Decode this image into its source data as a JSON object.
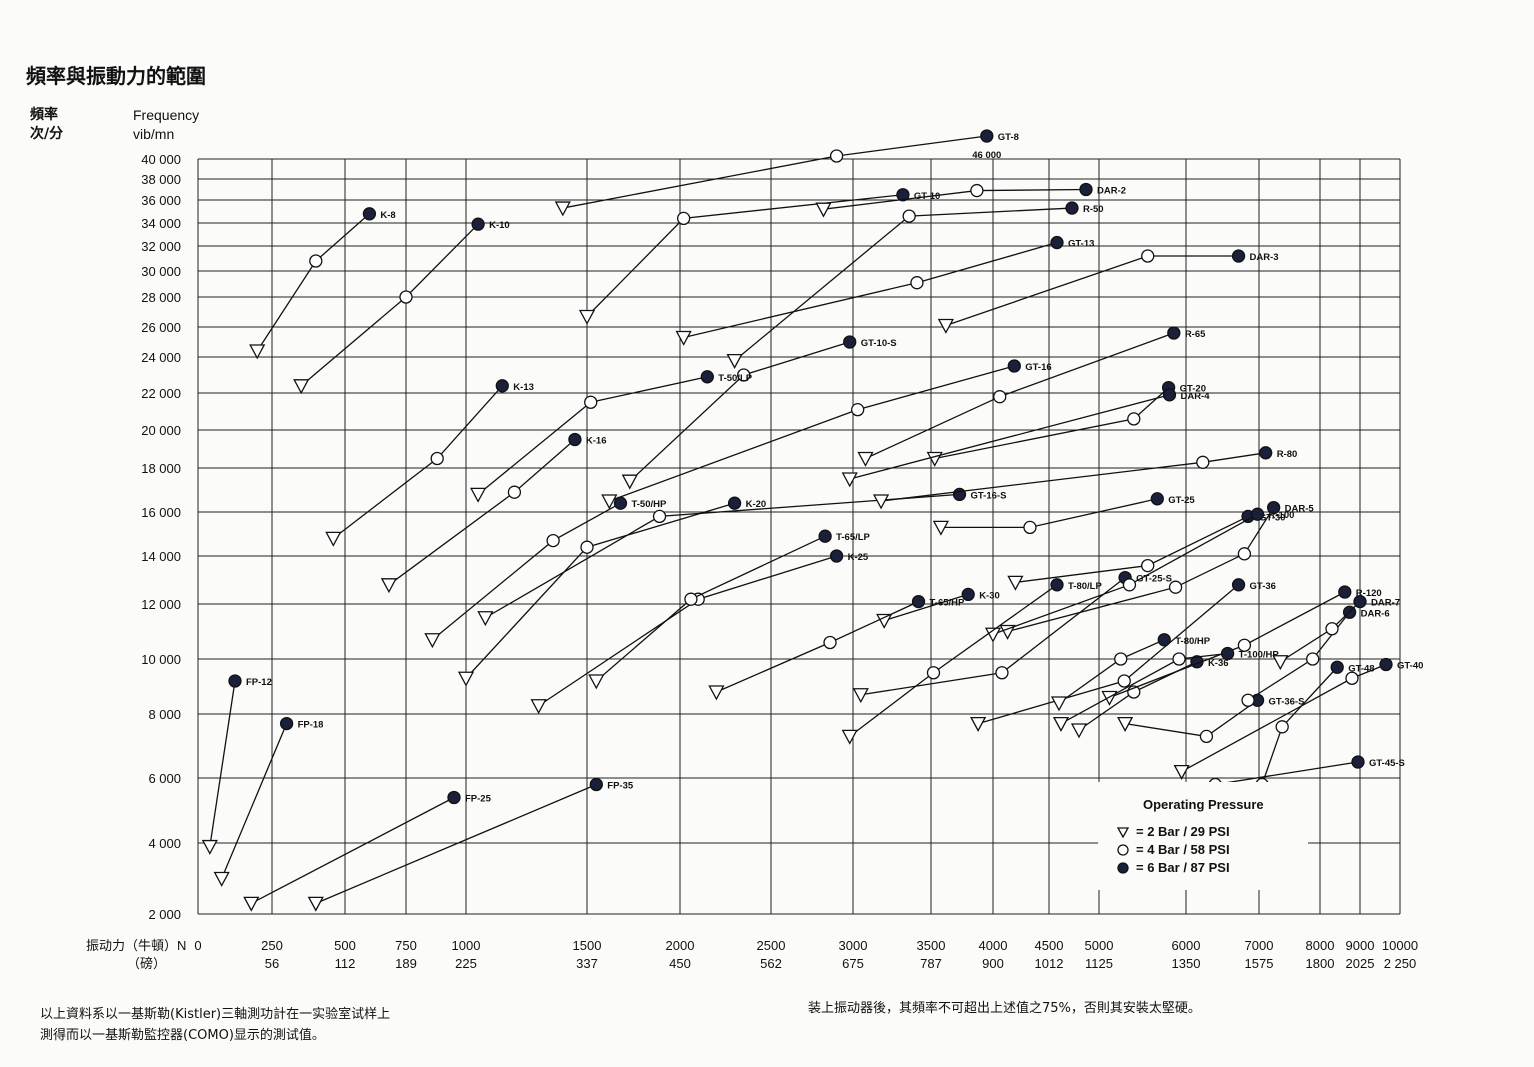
{
  "page": {
    "title": "頻率與振動力的範圍",
    "ylabel_cn_1": "頻率",
    "ylabel_cn_2": "次/分",
    "ylabel_en_1": "Frequency",
    "ylabel_en_2": "vib/mn",
    "footnote_left_1": "以上資料系以一基斯勒(Kistler)三軸測功計在一实验室试样上",
    "footnote_left_2": "測得而以一基斯勒監控器(COMO)显示的測试值。",
    "footnote_right": "装上振动器後，其頻率不可超出上述值之75%，否則其安裝太堅硬。"
  },
  "legend": {
    "title": "Operating Pressure",
    "items": [
      {
        "marker": "triangle",
        "label": "= 2 Bar / 29 PSI"
      },
      {
        "marker": "open-circle",
        "label": "= 4 Bar / 58 PSI"
      },
      {
        "marker": "filled-circle",
        "label": "= 6 Bar / 87 PSI"
      }
    ]
  },
  "chart_data": {
    "type": "line",
    "xlabel_cn": "振动力（牛頓）N",
    "xlabel_cn_2": "（磅）",
    "x_ticks": [
      {
        "n": 0,
        "lb": ""
      },
      {
        "n": 250,
        "lb": "56"
      },
      {
        "n": 500,
        "lb": "112"
      },
      {
        "n": 750,
        "lb": "189"
      },
      {
        "n": 1000,
        "lb": "225"
      },
      {
        "n": 1500,
        "lb": "337"
      },
      {
        "n": 2000,
        "lb": "450"
      },
      {
        "n": 2500,
        "lb": "562"
      },
      {
        "n": 3000,
        "lb": "675"
      },
      {
        "n": 3500,
        "lb": "787"
      },
      {
        "n": 4000,
        "lb": "900"
      },
      {
        "n": 4500,
        "lb": "1012"
      },
      {
        "n": 5000,
        "lb": "1125"
      },
      {
        "n": 6000,
        "lb": "1350"
      },
      {
        "n": 7000,
        "lb": "1575"
      },
      {
        "n": 8000,
        "lb": "1800"
      },
      {
        "n": 9000,
        "lb": "2025"
      },
      {
        "n": 10000,
        "lb": "2 250"
      }
    ],
    "y_ticks": [
      "2 000",
      "4 000",
      "6 000",
      "8 000",
      "10 000",
      "12 000",
      "14 000",
      "16 000",
      "18 000",
      "20 000",
      "22 000",
      "24 000",
      "26 000",
      "28 000",
      "30 000",
      "32 000",
      "34 000",
      "36 000",
      "38 000",
      "40 000"
    ],
    "y_extra_label": "46 000",
    "xlim": [
      0,
      10000
    ],
    "ylim": [
      2000,
      40000
    ],
    "grid": true,
    "legend_position": "bottom-right",
    "series": [
      {
        "name": "FP-12",
        "points": [
          [
            40,
            3900,
            "t"
          ],
          [
            125,
            9200,
            "f"
          ]
        ]
      },
      {
        "name": "FP-18",
        "points": [
          [
            80,
            3000,
            "t"
          ],
          [
            300,
            7700,
            "f"
          ]
        ]
      },
      {
        "name": "FP-25",
        "points": [
          [
            180,
            2300,
            "t"
          ],
          [
            950,
            5400,
            "f"
          ]
        ]
      },
      {
        "name": "FP-35",
        "points": [
          [
            400,
            2300,
            "t"
          ],
          [
            1550,
            5800,
            "f"
          ]
        ]
      },
      {
        "name": "K-8",
        "points": [
          [
            200,
            24400,
            "t"
          ],
          [
            400,
            30800,
            "o"
          ],
          [
            600,
            34800,
            "f"
          ]
        ]
      },
      {
        "name": "K-10",
        "points": [
          [
            350,
            22400,
            "t"
          ],
          [
            750,
            28000,
            "o"
          ],
          [
            1050,
            33900,
            "f"
          ]
        ]
      },
      {
        "name": "K-13",
        "points": [
          [
            460,
            14800,
            "t"
          ],
          [
            880,
            18500,
            "o"
          ],
          [
            1150,
            22400,
            "f"
          ]
        ]
      },
      {
        "name": "K-16",
        "points": [
          [
            680,
            12800,
            "t"
          ],
          [
            1200,
            16900,
            "o"
          ],
          [
            1450,
            19500,
            "f"
          ]
        ]
      },
      {
        "name": "K-20",
        "points": [
          [
            1000,
            9300,
            "t"
          ],
          [
            1500,
            14400,
            "o"
          ],
          [
            2300,
            16400,
            "f"
          ]
        ]
      },
      {
        "name": "K-25",
        "points": [
          [
            1300,
            8300,
            "t"
          ],
          [
            2100,
            12200,
            "o"
          ],
          [
            2900,
            14000,
            "f"
          ]
        ]
      },
      {
        "name": "K-30",
        "points": [
          [
            3200,
            11400,
            "t"
          ],
          [
            3800,
            12400,
            "f"
          ]
        ]
      },
      {
        "name": "K-36",
        "points": [
          [
            4800,
            7500,
            "t"
          ],
          [
            5400,
            8800,
            "o"
          ],
          [
            6150,
            9900,
            "f"
          ]
        ]
      },
      {
        "name": "GT-8",
        "points": [
          [
            1400,
            35300,
            "t"
          ],
          [
            2900,
            40300,
            "o"
          ],
          [
            3950,
            42300,
            "f"
          ]
        ]
      },
      {
        "name": "GT-10",
        "points": [
          [
            1500,
            26700,
            "t"
          ],
          [
            2020,
            34400,
            "o"
          ],
          [
            3320,
            36500,
            "f"
          ]
        ]
      },
      {
        "name": "GT-10-S",
        "points": [
          [
            1730,
            17400,
            "t"
          ],
          [
            2350,
            23000,
            "o"
          ],
          [
            2980,
            25000,
            "f"
          ]
        ]
      },
      {
        "name": "GT-13",
        "points": [
          [
            2020,
            25300,
            "t"
          ],
          [
            3410,
            29100,
            "o"
          ],
          [
            4580,
            32300,
            "f"
          ]
        ]
      },
      {
        "name": "GT-16",
        "points": [
          [
            1620,
            16500,
            "t"
          ],
          [
            3030,
            21100,
            "o"
          ],
          [
            4190,
            23500,
            "f"
          ]
        ]
      },
      {
        "name": "GT-16-S",
        "points": [
          [
            1080,
            11500,
            "t"
          ],
          [
            1890,
            15800,
            "o"
          ],
          [
            3730,
            16800,
            "f"
          ]
        ]
      },
      {
        "name": "GT-20",
        "points": [
          [
            3530,
            18500,
            "t"
          ],
          [
            5400,
            20600,
            "o"
          ],
          [
            5800,
            22300,
            "f"
          ]
        ]
      },
      {
        "name": "GT-25",
        "points": [
          [
            3580,
            15300,
            "t"
          ],
          [
            4330,
            15300,
            "o"
          ],
          [
            5670,
            16600,
            "f"
          ]
        ]
      },
      {
        "name": "GT-25-S",
        "points": [
          [
            3050,
            8700,
            "t"
          ],
          [
            4080,
            9500,
            "o"
          ],
          [
            5300,
            13100,
            "f"
          ]
        ]
      },
      {
        "name": "GT-30",
        "points": [
          [
            4200,
            12900,
            "t"
          ],
          [
            5560,
            13600,
            "o"
          ],
          [
            6850,
            15800,
            "f"
          ]
        ]
      },
      {
        "name": "GT-36",
        "points": [
          [
            3880,
            7700,
            "t"
          ],
          [
            5290,
            9200,
            "o"
          ],
          [
            6720,
            12800,
            "f"
          ]
        ]
      },
      {
        "name": "GT-36-S",
        "points": [
          [
            5300,
            7700,
            "t"
          ],
          [
            6280,
            7300,
            "o"
          ],
          [
            6980,
            8500,
            "f"
          ]
        ]
      },
      {
        "name": "GT-40",
        "points": [
          [
            5950,
            6200,
            "t"
          ],
          [
            8800,
            9300,
            "o"
          ],
          [
            9650,
            9800,
            "f"
          ]
        ]
      },
      {
        "name": "GT-45-S",
        "points": [
          [
            6400,
            5800,
            "o"
          ],
          [
            8950,
            6500,
            "f"
          ]
        ]
      },
      {
        "name": "GT-48",
        "points": [
          [
            7050,
            5800,
            "o"
          ],
          [
            7380,
            7600,
            "o"
          ],
          [
            8430,
            9700,
            "f"
          ]
        ]
      },
      {
        "name": "DAR-2",
        "points": [
          [
            2820,
            35200,
            "t"
          ],
          [
            3870,
            36900,
            "o"
          ],
          [
            4870,
            37000,
            "f"
          ]
        ]
      },
      {
        "name": "DAR-3",
        "points": [
          [
            3620,
            26100,
            "t"
          ],
          [
            5560,
            31200,
            "o"
          ],
          [
            6720,
            31200,
            "f"
          ]
        ]
      },
      {
        "name": "DAR-4",
        "points": [
          [
            2980,
            17500,
            "t"
          ],
          [
            5810,
            21900,
            "f"
          ]
        ]
      },
      {
        "name": "DAR-5",
        "points": [
          [
            4130,
            11000,
            "t"
          ],
          [
            5880,
            12700,
            "o"
          ],
          [
            6800,
            14100,
            "o"
          ],
          [
            7240,
            16200,
            "f"
          ]
        ]
      },
      {
        "name": "DAR-6",
        "points": [
          [
            6850,
            8500,
            "o"
          ],
          [
            7880,
            10000,
            "o"
          ],
          [
            8740,
            11700,
            "f"
          ]
        ]
      },
      {
        "name": "DAR-7",
        "points": [
          [
            7350,
            9900,
            "t"
          ],
          [
            8300,
            11100,
            "o"
          ],
          [
            9000,
            12100,
            "f"
          ]
        ]
      },
      {
        "name": "R-50",
        "points": [
          [
            2300,
            23800,
            "t"
          ],
          [
            3360,
            34600,
            "o"
          ],
          [
            4730,
            35300,
            "f"
          ]
        ]
      },
      {
        "name": "R-65",
        "points": [
          [
            3080,
            18500,
            "t"
          ],
          [
            4060,
            21800,
            "o"
          ],
          [
            5860,
            25600,
            "f"
          ]
        ]
      },
      {
        "name": "R-80",
        "points": [
          [
            3180,
            16500,
            "t"
          ],
          [
            6230,
            18300,
            "o"
          ],
          [
            7110,
            18800,
            "f"
          ]
        ]
      },
      {
        "name": "R-100",
        "points": [
          [
            4000,
            10900,
            "t"
          ],
          [
            5350,
            12800,
            "o"
          ],
          [
            6980,
            15900,
            "f"
          ]
        ]
      },
      {
        "name": "R-120",
        "points": [
          [
            5120,
            8600,
            "t"
          ],
          [
            6800,
            10500,
            "o"
          ],
          [
            8620,
            12500,
            "f"
          ]
        ]
      },
      {
        "name": "T-50/LP",
        "points": [
          [
            1050,
            16800,
            "t"
          ],
          [
            1520,
            21500,
            "o"
          ],
          [
            2150,
            22900,
            "f"
          ]
        ]
      },
      {
        "name": "T-50/HP",
        "points": [
          [
            860,
            10700,
            "t"
          ],
          [
            1360,
            14700,
            "o"
          ],
          [
            1680,
            16400,
            "f"
          ]
        ]
      },
      {
        "name": "T-65/LP",
        "points": [
          [
            1550,
            9200,
            "t"
          ],
          [
            2060,
            12200,
            "o"
          ],
          [
            2830,
            14900,
            "f"
          ]
        ]
      },
      {
        "name": "T-65/HP",
        "points": [
          [
            2200,
            8800,
            "t"
          ],
          [
            2860,
            10600,
            "o"
          ],
          [
            3420,
            12100,
            "f"
          ]
        ]
      },
      {
        "name": "T-80/LP",
        "points": [
          [
            2980,
            7300,
            "t"
          ],
          [
            3520,
            9500,
            "o"
          ],
          [
            4580,
            12800,
            "f"
          ]
        ]
      },
      {
        "name": "T-80/HP",
        "points": [
          [
            4600,
            8400,
            "t"
          ],
          [
            5250,
            10000,
            "o"
          ],
          [
            5750,
            10700,
            "f"
          ]
        ]
      },
      {
        "name": "T-100/HP",
        "points": [
          [
            4620,
            7700,
            "t"
          ],
          [
            5920,
            10000,
            "o"
          ],
          [
            6570,
            10200,
            "f"
          ]
        ]
      }
    ]
  }
}
